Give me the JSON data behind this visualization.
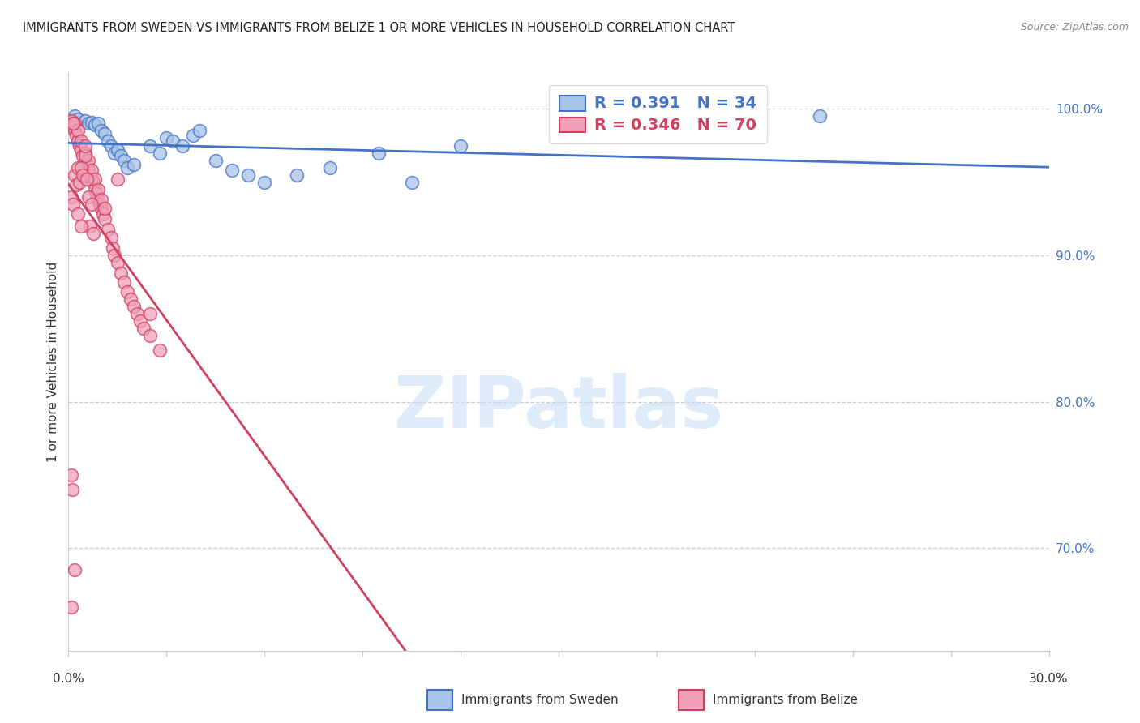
{
  "title": "IMMIGRANTS FROM SWEDEN VS IMMIGRANTS FROM BELIZE 1 OR MORE VEHICLES IN HOUSEHOLD CORRELATION CHART",
  "source": "Source: ZipAtlas.com",
  "ylabel": "1 or more Vehicles in Household",
  "sweden_color": "#a8c4e8",
  "belize_color": "#f0a0b8",
  "sweden_line_color": "#4472c4",
  "belize_line_color": "#d04060",
  "legend_sweden": "Immigrants from Sweden",
  "legend_belize": "Immigrants from Belize",
  "sweden_R": 0.391,
  "sweden_N": 34,
  "belize_R": 0.346,
  "belize_N": 70,
  "xlim": [
    0.0,
    30.0
  ],
  "ylim": [
    63.0,
    102.5
  ],
  "yticks": [
    70.0,
    80.0,
    90.0,
    100.0
  ],
  "right_ytick_labels": [
    "100.0%",
    "90.0%",
    "80.0%",
    "70.0%"
  ],
  "xtick_positions": [
    0,
    3,
    6,
    9,
    12,
    15,
    18,
    21,
    24,
    27,
    30
  ],
  "sweden_points": [
    [
      0.2,
      99.5
    ],
    [
      0.3,
      99.3
    ],
    [
      0.5,
      99.2
    ],
    [
      0.6,
      99.0
    ],
    [
      0.7,
      99.1
    ],
    [
      0.8,
      98.9
    ],
    [
      0.9,
      99.0
    ],
    [
      1.0,
      98.5
    ],
    [
      1.1,
      98.3
    ],
    [
      1.2,
      97.8
    ],
    [
      1.3,
      97.5
    ],
    [
      1.4,
      97.0
    ],
    [
      1.5,
      97.2
    ],
    [
      1.6,
      96.8
    ],
    [
      1.7,
      96.5
    ],
    [
      1.8,
      96.0
    ],
    [
      2.0,
      96.2
    ],
    [
      2.5,
      97.5
    ],
    [
      2.8,
      97.0
    ],
    [
      3.0,
      98.0
    ],
    [
      3.2,
      97.8
    ],
    [
      3.5,
      97.5
    ],
    [
      3.8,
      98.2
    ],
    [
      4.0,
      98.5
    ],
    [
      4.5,
      96.5
    ],
    [
      5.0,
      95.8
    ],
    [
      5.5,
      95.5
    ],
    [
      6.0,
      95.0
    ],
    [
      7.0,
      95.5
    ],
    [
      8.0,
      96.0
    ],
    [
      9.5,
      97.0
    ],
    [
      12.0,
      97.5
    ],
    [
      23.0,
      99.5
    ],
    [
      10.5,
      95.0
    ]
  ],
  "belize_points": [
    [
      0.1,
      99.2
    ],
    [
      0.15,
      98.8
    ],
    [
      0.2,
      98.5
    ],
    [
      0.2,
      99.0
    ],
    [
      0.25,
      98.2
    ],
    [
      0.3,
      97.8
    ],
    [
      0.3,
      98.5
    ],
    [
      0.35,
      97.5
    ],
    [
      0.4,
      97.2
    ],
    [
      0.4,
      97.8
    ],
    [
      0.45,
      96.8
    ],
    [
      0.5,
      96.5
    ],
    [
      0.5,
      97.0
    ],
    [
      0.55,
      96.2
    ],
    [
      0.6,
      95.8
    ],
    [
      0.6,
      96.5
    ],
    [
      0.65,
      95.5
    ],
    [
      0.7,
      95.2
    ],
    [
      0.7,
      95.8
    ],
    [
      0.75,
      95.0
    ],
    [
      0.8,
      94.5
    ],
    [
      0.8,
      95.2
    ],
    [
      0.85,
      94.2
    ],
    [
      0.9,
      93.8
    ],
    [
      0.9,
      94.5
    ],
    [
      0.95,
      93.5
    ],
    [
      1.0,
      93.2
    ],
    [
      1.0,
      93.8
    ],
    [
      1.05,
      92.8
    ],
    [
      1.1,
      92.5
    ],
    [
      1.1,
      93.2
    ],
    [
      1.2,
      91.8
    ],
    [
      1.3,
      91.2
    ],
    [
      1.35,
      90.5
    ],
    [
      1.4,
      90.0
    ],
    [
      1.5,
      89.5
    ],
    [
      1.6,
      88.8
    ],
    [
      1.7,
      88.2
    ],
    [
      1.8,
      87.5
    ],
    [
      1.9,
      87.0
    ],
    [
      2.0,
      86.5
    ],
    [
      2.1,
      86.0
    ],
    [
      2.2,
      85.5
    ],
    [
      2.3,
      85.0
    ],
    [
      2.5,
      84.5
    ],
    [
      2.8,
      83.5
    ],
    [
      0.1,
      94.0
    ],
    [
      0.15,
      93.5
    ],
    [
      0.2,
      95.5
    ],
    [
      0.25,
      94.8
    ],
    [
      0.3,
      96.0
    ],
    [
      0.35,
      95.0
    ],
    [
      0.4,
      96.0
    ],
    [
      0.45,
      95.5
    ],
    [
      0.5,
      96.8
    ],
    [
      0.55,
      95.2
    ],
    [
      0.6,
      94.0
    ],
    [
      0.65,
      92.0
    ],
    [
      0.7,
      93.5
    ],
    [
      0.75,
      91.5
    ],
    [
      0.1,
      75.0
    ],
    [
      0.12,
      74.0
    ],
    [
      0.15,
      99.0
    ],
    [
      2.5,
      86.0
    ],
    [
      0.2,
      68.5
    ],
    [
      0.1,
      66.0
    ],
    [
      0.3,
      92.8
    ],
    [
      0.4,
      92.0
    ],
    [
      0.5,
      97.5
    ],
    [
      1.5,
      95.2
    ]
  ],
  "watermark_text": "ZIPatlas",
  "watermark_color": "#c8dff5",
  "background_color": "#ffffff"
}
